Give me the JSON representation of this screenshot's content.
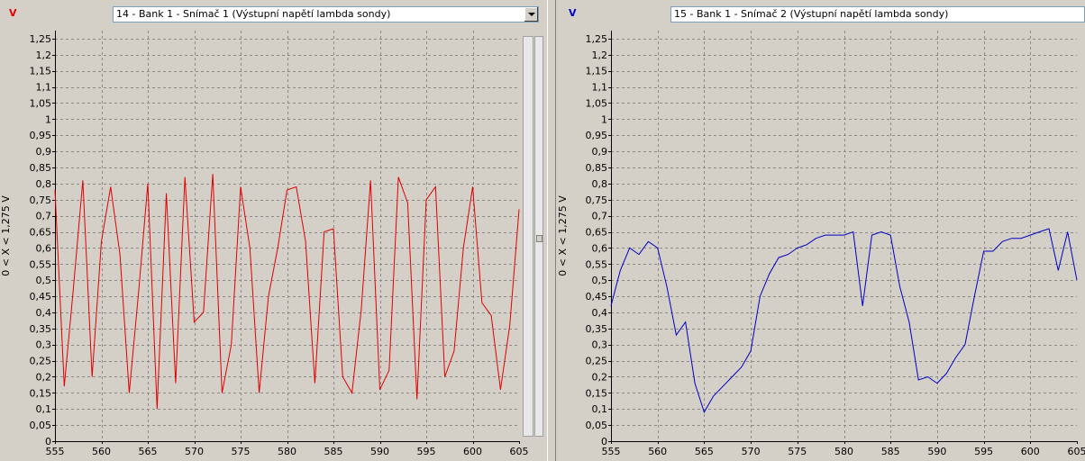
{
  "charts": [
    {
      "unit_marker": "V",
      "selector_value": "14 - Bank 1 - Snímač 1 (Výstupní napětí lambda sondy)",
      "y_axis_label": "0  < X <  1,275  V",
      "line_color": "#e00000",
      "marker_color": "#e00000"
    },
    {
      "unit_marker": "V",
      "selector_value": "15 - Bank 1 - Snímač 2 (Výstupní napětí lambda sondy)",
      "y_axis_label": "0  < X <  1,275  V",
      "line_color": "#0000c0",
      "marker_color": "#0000c0"
    }
  ],
  "chart_data": [
    {
      "type": "line",
      "ylim": [
        0,
        1.275
      ],
      "xlim": [
        555,
        605
      ],
      "grid": true,
      "y_ticks": [
        "0",
        "0,05",
        "0,1",
        "0,15",
        "0,2",
        "0,25",
        "0,3",
        "0,35",
        "0,4",
        "0,45",
        "0,5",
        "0,55",
        "0,6",
        "0,65",
        "0,7",
        "0,75",
        "0,8",
        "0,85",
        "0,9",
        "0,95",
        "1",
        "1,05",
        "1,1",
        "1,15",
        "1,2",
        "1,25"
      ],
      "x_ticks": [
        "555",
        "560",
        "565",
        "570",
        "575",
        "580",
        "585",
        "590",
        "595",
        "600",
        "605"
      ],
      "x": [
        555,
        556,
        557,
        558,
        559,
        560,
        561,
        562,
        563,
        564,
        565,
        566,
        567,
        568,
        569,
        570,
        571,
        572,
        573,
        574,
        575,
        576,
        577,
        578,
        579,
        580,
        581,
        582,
        583,
        584,
        585,
        586,
        587,
        588,
        589,
        590,
        591,
        592,
        593,
        594,
        595,
        596,
        597,
        598,
        599,
        600,
        601,
        602,
        603,
        604,
        605
      ],
      "values": [
        0.78,
        0.17,
        0.48,
        0.81,
        0.2,
        0.62,
        0.79,
        0.58,
        0.15,
        0.46,
        0.8,
        0.1,
        0.77,
        0.18,
        0.82,
        0.37,
        0.4,
        0.83,
        0.15,
        0.3,
        0.79,
        0.6,
        0.15,
        0.45,
        0.6,
        0.78,
        0.79,
        0.62,
        0.18,
        0.65,
        0.66,
        0.2,
        0.15,
        0.41,
        0.81,
        0.16,
        0.22,
        0.82,
        0.74,
        0.13,
        0.75,
        0.79,
        0.2,
        0.28,
        0.6,
        0.79,
        0.43,
        0.39,
        0.16,
        0.36,
        0.72
      ]
    },
    {
      "type": "line",
      "ylim": [
        0,
        1.275
      ],
      "xlim": [
        555,
        605
      ],
      "grid": true,
      "y_ticks": [
        "0",
        "0,05",
        "0,1",
        "0,15",
        "0,2",
        "0,25",
        "0,3",
        "0,35",
        "0,4",
        "0,45",
        "0,5",
        "0,55",
        "0,6",
        "0,65",
        "0,7",
        "0,75",
        "0,8",
        "0,85",
        "0,9",
        "0,95",
        "1",
        "1,05",
        "1,1",
        "1,15",
        "1,2",
        "1,25"
      ],
      "x_ticks": [
        "555",
        "560",
        "565",
        "570",
        "575",
        "580",
        "585",
        "590",
        "595",
        "600",
        "605"
      ],
      "x": [
        555,
        556,
        557,
        558,
        559,
        560,
        561,
        562,
        563,
        564,
        565,
        566,
        567,
        568,
        569,
        570,
        571,
        572,
        573,
        574,
        575,
        576,
        577,
        578,
        579,
        580,
        581,
        582,
        583,
        584,
        585,
        586,
        587,
        588,
        589,
        590,
        591,
        592,
        593,
        594,
        595,
        596,
        597,
        598,
        599,
        600,
        601,
        602,
        603,
        604,
        605
      ],
      "values": [
        0.42,
        0.53,
        0.6,
        0.58,
        0.62,
        0.6,
        0.48,
        0.33,
        0.37,
        0.18,
        0.09,
        0.14,
        0.17,
        0.2,
        0.23,
        0.28,
        0.45,
        0.52,
        0.57,
        0.58,
        0.6,
        0.61,
        0.63,
        0.64,
        0.64,
        0.64,
        0.65,
        0.42,
        0.64,
        0.65,
        0.64,
        0.48,
        0.37,
        0.19,
        0.2,
        0.18,
        0.21,
        0.26,
        0.3,
        0.45,
        0.59,
        0.59,
        0.62,
        0.63,
        0.63,
        0.64,
        0.65,
        0.66,
        0.53,
        0.65,
        0.5
      ]
    }
  ]
}
